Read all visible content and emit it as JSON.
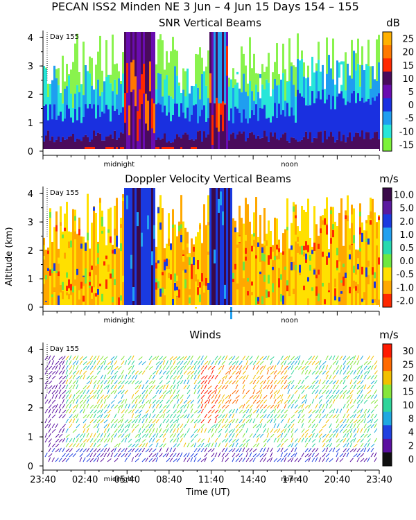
{
  "header": {
    "title": "PECAN ISS2 Minden NE    3 Jun –  4 Jun 15 Days 154 – 155"
  },
  "chart_data": [
    {
      "type": "heatmap",
      "title": "SNR Vertical Beams",
      "ylabel": "",
      "ylim": [
        0,
        4.2
      ],
      "y_ticks": [
        "0",
        "1",
        "2",
        "3",
        "4"
      ],
      "day_label": "Day 155",
      "x_annotations": [
        "midnight",
        "noon"
      ],
      "colorbar": {
        "unit": "dB",
        "levels": [
          "25",
          "20",
          "15",
          "10",
          "5",
          "0",
          "-5",
          "-10",
          "-15"
        ],
        "colors": [
          "#ffb000",
          "#ff7800",
          "#ff2800",
          "#4a0b5c",
          "#6a0cb0",
          "#1a30e0",
          "#1f9ef0",
          "#27e6d9",
          "#7cf23a"
        ]
      }
    },
    {
      "type": "heatmap",
      "title": "Doppler Velocity Vertical Beams",
      "ylabel": "Altitude (km)",
      "ylim": [
        0,
        4.2
      ],
      "y_ticks": [
        "0",
        "1",
        "2",
        "3",
        "4"
      ],
      "day_label": "Day 155",
      "x_annotations": [
        "midnight",
        "noon"
      ],
      "colorbar": {
        "unit": "m/s",
        "levels": [
          "10.0",
          "5.0",
          "2.0",
          "1.0",
          "0.5",
          "0.0",
          "-0.5",
          "-1.0",
          "-2.0"
        ],
        "colors": [
          "#3a0a4a",
          "#5a1aa0",
          "#1a3ae0",
          "#22a0f0",
          "#28d9b0",
          "#6ee840",
          "#ffe000",
          "#ffa800",
          "#ff2800"
        ]
      }
    },
    {
      "type": "scatter",
      "title": "Winds",
      "xlabel": "Time (UT)",
      "ylim": [
        0,
        4.2
      ],
      "y_ticks": [
        "0",
        "1",
        "2",
        "3",
        "4"
      ],
      "x_ticks": [
        "23:40",
        "02:40",
        "05:40",
        "08:40",
        "11:40",
        "14:40",
        "17:40",
        "20:40",
        "23:40"
      ],
      "day_label": "Day 155",
      "x_annotations": [
        "midnight",
        "noon"
      ],
      "colorbar": {
        "unit": "m/s",
        "levels": [
          "30",
          "25",
          "20",
          "15",
          "10",
          "8",
          "4",
          "2",
          "0"
        ],
        "colors": [
          "#ff1a00",
          "#ff6a00",
          "#f2c000",
          "#86e63a",
          "#2fd49a",
          "#20a8e0",
          "#2040e0",
          "#5a10a0",
          "#101010"
        ]
      }
    }
  ]
}
